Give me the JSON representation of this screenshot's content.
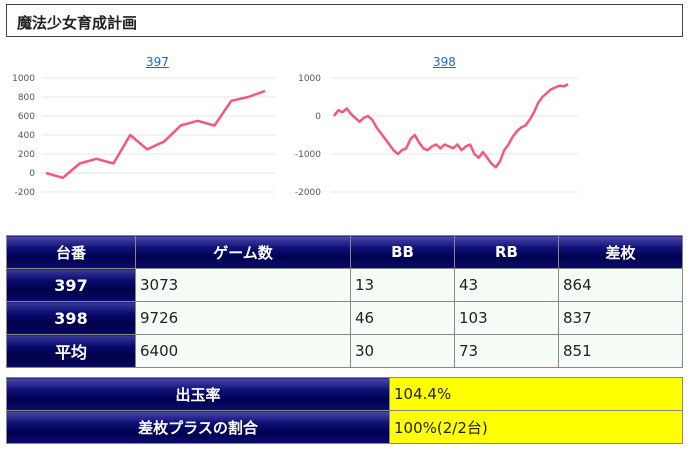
{
  "page": {
    "title": "魔法少女育成計画"
  },
  "charts": [
    {
      "link_label": "397",
      "y_ticks": [
        "1000",
        "800",
        "600",
        "400",
        "200",
        "0",
        "-200"
      ],
      "y_min": -200,
      "y_max": 1000,
      "values": [
        0,
        -50,
        100,
        150,
        100,
        400,
        250,
        330,
        500,
        550,
        500,
        760,
        800,
        864
      ],
      "color": "#f2597a"
    },
    {
      "link_label": "398",
      "y_ticks": [
        "1000",
        "0",
        "-1000",
        "-2000"
      ],
      "y_min": -2000,
      "y_max": 1000,
      "values": [
        0,
        150,
        100,
        200,
        50,
        -50,
        -150,
        -50,
        0,
        -100,
        -300,
        -450,
        -600,
        -750,
        -900,
        -1000,
        -900,
        -850,
        -600,
        -500,
        -700,
        -850,
        -900,
        -800,
        -750,
        -850,
        -750,
        -800,
        -850,
        -750,
        -900,
        -800,
        -750,
        -1000,
        -1100,
        -950,
        -1100,
        -1250,
        -1350,
        -1200,
        -900,
        -750,
        -550,
        -400,
        -300,
        -250,
        -100,
        100,
        350,
        500,
        600,
        700,
        750,
        800,
        780,
        837
      ],
      "color": "#f2597a"
    }
  ],
  "table": {
    "headers": [
      "台番",
      "ゲーム数",
      "BB",
      "RB",
      "差枚"
    ],
    "rows": [
      {
        "label": "397",
        "cells": [
          "3073",
          "13",
          "43",
          "864"
        ]
      },
      {
        "label": "398",
        "cells": [
          "9726",
          "46",
          "103",
          "837"
        ]
      },
      {
        "label": "平均",
        "cells": [
          "6400",
          "30",
          "73",
          "851"
        ]
      }
    ]
  },
  "summary": {
    "rows": [
      {
        "label": "出玉率",
        "value": "104.4%"
      },
      {
        "label": "差枚プラスの割合",
        "value": "100%(2/2台)"
      }
    ],
    "highlight_color": "#ffff00"
  }
}
